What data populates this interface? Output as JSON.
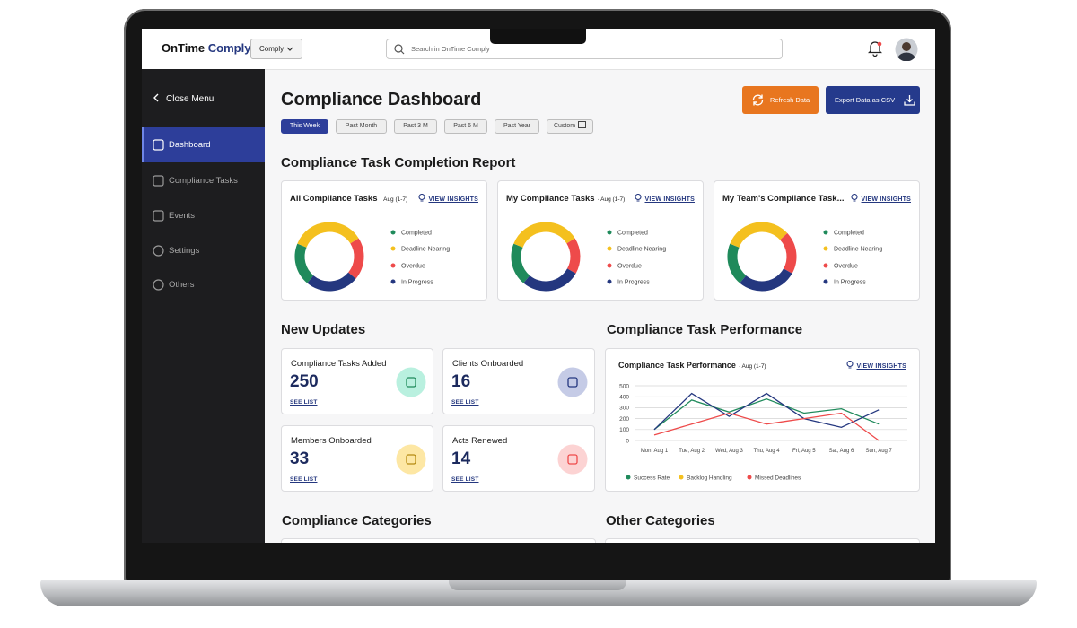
{
  "header": {
    "brand_primary": "OnTime",
    "brand_secondary": "Comply",
    "workspace": "Comply",
    "search_placeholder": "Search in OnTime Comply"
  },
  "sidebar": {
    "close": "Close Menu",
    "items": [
      "Dashboard",
      "Compliance Tasks",
      "Events",
      "Settings",
      "Others"
    ]
  },
  "page": {
    "title": "Compliance Dashboard",
    "actions": [
      "Refresh Data",
      "Export Data as CSV"
    ],
    "filters": [
      "This Week",
      "Past Month",
      "Past 3 M",
      "Past 6 M",
      "Past Year",
      "Custom"
    ]
  },
  "completion_report": {
    "title": "Compliance Task Completion Report",
    "cards": [
      {
        "title": "All Compliance Tasks",
        "period": "· Aug (1-7)",
        "link": "VIEW INSIGHTS",
        "chart_data": {
          "type": "donut",
          "categories": [
            "Completed",
            "Deadline Nearing",
            "Overdue",
            "In Progress"
          ],
          "values": [
            20,
            35,
            20,
            25
          ],
          "colors": [
            "#1f8a5b",
            "#f4c01e",
            "#ee4a4a",
            "#24377f"
          ]
        }
      },
      {
        "title": "My Compliance Tasks",
        "period": "· Aug (1-7)",
        "link": "VIEW INSIGHTS",
        "chart_data": {
          "type": "donut",
          "categories": [
            "Completed",
            "Deadline Nearing",
            "Overdue",
            "In Progress"
          ],
          "values": [
            20,
            35,
            17,
            28
          ],
          "colors": [
            "#1f8a5b",
            "#f4c01e",
            "#ee4a4a",
            "#24377f"
          ]
        }
      },
      {
        "title": "My Team's Compliance Task...",
        "link": "VIEW INSIGHTS",
        "chart_data": {
          "type": "donut",
          "categories": [
            "Completed",
            "Deadline Nearing",
            "Overdue",
            "In Progress"
          ],
          "values": [
            20,
            32,
            20,
            28
          ],
          "colors": [
            "#1f8a5b",
            "#f4c01e",
            "#ee4a4a",
            "#24377f"
          ]
        }
      }
    ]
  },
  "updates": {
    "title": "New Updates",
    "cards": [
      {
        "label": "Compliance Tasks Added",
        "value": "250",
        "link": "SEE LIST"
      },
      {
        "label": "Clients Onboarded",
        "value": "16",
        "link": "SEE LIST"
      },
      {
        "label": "Members Onboarded",
        "value": "33",
        "link": "SEE LIST"
      },
      {
        "label": "Acts Renewed",
        "value": "14",
        "link": "SEE LIST"
      }
    ]
  },
  "performance": {
    "title": "Compliance Task Performance",
    "card_title": "Compliance Task Performance",
    "period": "· Aug (1-7)",
    "link": "VIEW INSIGHTS",
    "chart_data": {
      "type": "line",
      "categories": [
        "Mon, Aug 1",
        "Tue, Aug 2",
        "Wed, Aug 3",
        "Thu, Aug 4",
        "Fri, Aug 5",
        "Sat, Aug 6",
        "Sun, Aug 7"
      ],
      "series": [
        {
          "name": "Success Rate",
          "color": "#1f8a5b",
          "values": [
            100,
            370,
            260,
            380,
            250,
            290,
            150
          ]
        },
        {
          "name": "Backlog Handling",
          "color": "#24377f",
          "values": [
            100,
            430,
            220,
            430,
            200,
            120,
            280
          ]
        },
        {
          "name": "Missed Deadlines",
          "color": "#ee4a4a",
          "values": [
            50,
            150,
            250,
            150,
            200,
            250,
            0
          ]
        }
      ],
      "legend_dot_colors": [
        "#1f8a5b",
        "#f4c01e",
        "#ee4a4a"
      ],
      "ylim": [
        0,
        500
      ],
      "yticks": [
        0,
        100,
        200,
        300,
        400,
        500
      ],
      "grid": true
    }
  },
  "sections": {
    "compliance_categories": "Compliance Categories",
    "other_categories": "Other Categories"
  }
}
